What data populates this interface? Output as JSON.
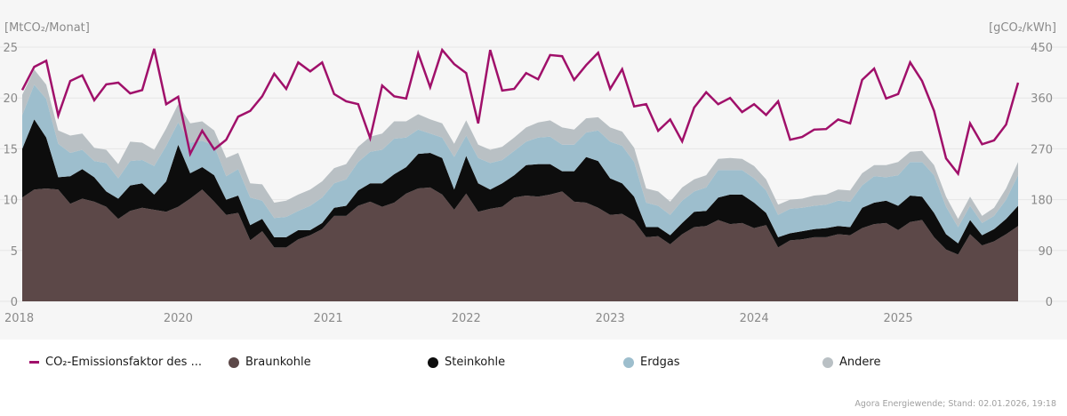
{
  "chart_data": {
    "type": "area",
    "stacked": true,
    "title": "",
    "ylabel_left": "[MtCO₂/Monat]",
    "ylabel_right": "[gCO₂/kWh]",
    "ylim_left": [
      0,
      25
    ],
    "ylim_right": [
      0,
      450
    ],
    "yticks_left": [
      "0",
      "5",
      "10",
      "15",
      "20",
      "25"
    ],
    "yticks_right": [
      "0",
      "90",
      "180",
      "270",
      "360",
      "450"
    ],
    "grid": true,
    "legend_position": "bottom",
    "x_tick_labels": [
      {
        "label": "2018",
        "index": 0
      },
      {
        "label": "2020",
        "index": 13
      },
      {
        "label": "2021",
        "index": 25.5
      },
      {
        "label": "2022",
        "index": 37
      },
      {
        "label": "2023",
        "index": 49
      },
      {
        "label": "2024",
        "index": 61
      },
      {
        "label": "2025",
        "index": 73
      }
    ],
    "n_points": 84,
    "series": [
      {
        "name": "Braunkohle",
        "color": "#5c4848",
        "kind": "area",
        "values": [
          10.2,
          11.0,
          11.1,
          11.0,
          9.6,
          10.1,
          9.8,
          9.3,
          8.1,
          8.9,
          9.2,
          9.0,
          8.8,
          9.3,
          10.1,
          11.0,
          9.8,
          8.5,
          8.7,
          6.0,
          6.9,
          5.3,
          5.3,
          6.1,
          6.5,
          7.1,
          8.4,
          8.4,
          9.4,
          9.8,
          9.3,
          9.7,
          10.6,
          11.1,
          11.2,
          10.5,
          9.0,
          10.6,
          8.8,
          9.1,
          9.3,
          10.2,
          10.4,
          10.3,
          10.5,
          10.8,
          9.8,
          9.7,
          9.2,
          8.5,
          8.6,
          7.9,
          6.3,
          6.4,
          5.6,
          6.6,
          7.3,
          7.4,
          8.0,
          7.6,
          7.7,
          7.2,
          7.5,
          5.3,
          6.0,
          6.1,
          6.3,
          6.3,
          6.6,
          6.5,
          7.2,
          7.6,
          7.7,
          7.0,
          7.8,
          8.0,
          6.3,
          5.1,
          4.6,
          6.6,
          5.5,
          5.9,
          6.6,
          7.4
        ]
      },
      {
        "name": "Steinkohle",
        "color": "#0d0d0d",
        "kind": "area",
        "values": [
          4.8,
          6.9,
          5.0,
          1.2,
          2.7,
          2.9,
          2.4,
          1.5,
          2.0,
          2.5,
          2.4,
          1.5,
          3.0,
          6.1,
          2.5,
          2.2,
          2.6,
          1.5,
          1.7,
          1.5,
          1.2,
          1.0,
          1.0,
          0.9,
          0.5,
          0.6,
          0.8,
          1.0,
          1.5,
          1.8,
          2.3,
          2.8,
          2.6,
          3.4,
          3.4,
          3.6,
          2.0,
          3.7,
          2.8,
          1.9,
          2.3,
          2.2,
          3.0,
          3.2,
          3.0,
          2.0,
          3.0,
          4.5,
          4.6,
          3.6,
          3.0,
          2.4,
          1.0,
          0.9,
          0.9,
          1.1,
          1.5,
          1.5,
          2.2,
          2.9,
          2.8,
          2.5,
          1.2,
          1.0,
          0.7,
          0.8,
          0.8,
          0.9,
          0.8,
          0.8,
          2.0,
          2.1,
          2.2,
          2.4,
          2.6,
          2.3,
          2.4,
          1.5,
          1.1,
          1.4,
          1.0,
          1.2,
          1.5,
          2.0
        ]
      },
      {
        "name": "Erdgas",
        "color": "#9dbecd",
        "kind": "area",
        "values": [
          3.3,
          3.4,
          3.8,
          3.3,
          2.3,
          1.9,
          1.6,
          2.8,
          2.0,
          2.4,
          2.3,
          2.8,
          3.5,
          2.2,
          3.0,
          2.6,
          2.9,
          2.3,
          2.6,
          2.7,
          1.8,
          1.9,
          2.0,
          1.9,
          2.4,
          2.5,
          2.4,
          2.6,
          2.8,
          3.1,
          3.3,
          3.5,
          2.9,
          2.4,
          1.9,
          2.0,
          3.2,
          2.0,
          2.5,
          2.6,
          2.3,
          2.4,
          2.3,
          2.6,
          2.7,
          2.6,
          2.6,
          2.4,
          3.0,
          3.6,
          3.7,
          3.4,
          2.4,
          2.1,
          2.0,
          2.2,
          2.0,
          2.3,
          2.7,
          2.4,
          2.4,
          2.4,
          2.2,
          2.2,
          2.4,
          2.3,
          2.3,
          2.3,
          2.5,
          2.5,
          2.2,
          2.6,
          2.3,
          3.0,
          3.3,
          3.4,
          3.7,
          2.7,
          1.6,
          1.4,
          1.2,
          1.3,
          1.9,
          3.0
        ]
      },
      {
        "name": "Andere",
        "color": "#b9c0c4",
        "kind": "area",
        "values": [
          2.0,
          1.5,
          1.4,
          1.3,
          1.7,
          1.6,
          1.3,
          1.3,
          1.4,
          1.9,
          1.7,
          1.6,
          1.7,
          1.8,
          1.9,
          1.9,
          1.5,
          1.8,
          1.6,
          1.4,
          1.6,
          1.5,
          1.6,
          1.6,
          1.6,
          1.6,
          1.5,
          1.5,
          1.5,
          1.5,
          1.6,
          1.7,
          1.6,
          1.5,
          1.4,
          1.4,
          1.3,
          1.5,
          1.3,
          1.3,
          1.3,
          1.3,
          1.4,
          1.5,
          1.6,
          1.7,
          1.5,
          1.4,
          1.3,
          1.4,
          1.4,
          1.4,
          1.4,
          1.4,
          1.3,
          1.3,
          1.2,
          1.2,
          1.1,
          1.2,
          1.1,
          1.2,
          1.1,
          1.0,
          0.9,
          0.9,
          1.0,
          1.0,
          1.1,
          1.1,
          1.2,
          1.1,
          1.2,
          1.3,
          1.0,
          1.1,
          1.0,
          1.0,
          0.8,
          0.9,
          0.7,
          0.8,
          1.1,
          1.3
        ]
      },
      {
        "name": "CO₂-Emissionsfaktor des ...",
        "color": "#a0106a",
        "kind": "line",
        "axis": "right",
        "values": [
          374,
          415,
          426,
          329,
          390,
          400,
          356,
          384,
          387,
          368,
          374,
          447,
          349,
          362,
          261,
          302,
          269,
          286,
          327,
          337,
          363,
          403,
          376,
          423,
          407,
          423,
          367,
          354,
          349,
          289,
          382,
          363,
          359,
          439,
          379,
          445,
          420,
          404,
          315,
          445,
          373,
          376,
          404,
          393,
          436,
          434,
          392,
          418,
          440,
          376,
          411,
          345,
          349,
          302,
          322,
          283,
          343,
          370,
          349,
          360,
          335,
          349,
          330,
          354,
          286,
          291,
          304,
          305,
          322,
          315,
          392,
          412,
          359,
          367,
          423,
          390,
          337,
          253,
          226,
          315,
          278,
          285,
          313,
          387
        ]
      }
    ]
  },
  "legend": {
    "items": [
      {
        "label": "CO₂-Emissionsfaktor des ...",
        "color": "#a0106a",
        "shape": "line"
      },
      {
        "label": "Braunkohle",
        "color": "#5c4848",
        "shape": "dot"
      },
      {
        "label": "Steinkohle",
        "color": "#0d0d0d",
        "shape": "dot"
      },
      {
        "label": "Erdgas",
        "color": "#9dbecd",
        "shape": "dot"
      },
      {
        "label": "Andere",
        "color": "#b9c0c4",
        "shape": "dot"
      }
    ]
  },
  "source": "Agora Energiewende; Stand: 02.01.2026, 19:18"
}
